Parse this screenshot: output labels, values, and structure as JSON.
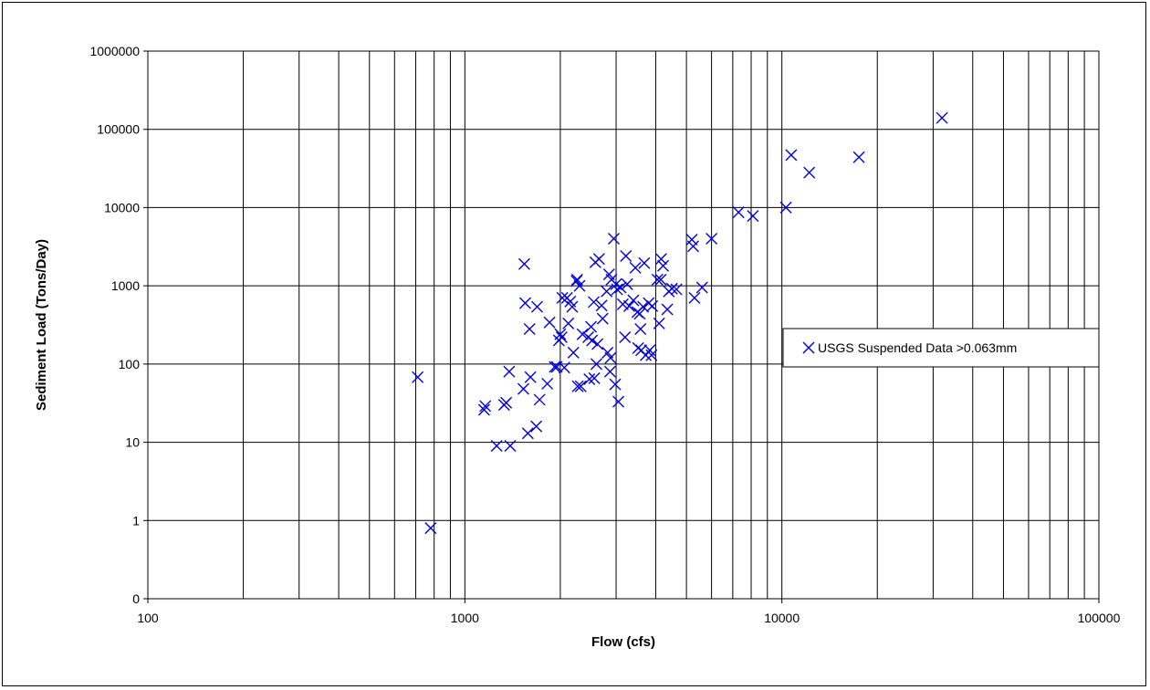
{
  "chart_data": {
    "type": "scatter",
    "xlabel": "Flow (cfs)",
    "ylabel": "Sediment Load (Tons/Day)",
    "x_scale": "log",
    "y_scale": "log",
    "xlim": [
      100,
      100000
    ],
    "ylim": [
      0,
      1000000
    ],
    "x_ticks": [
      "100",
      "1000",
      "10000",
      "100000"
    ],
    "y_ticks": [
      "0",
      "1",
      "10",
      "100",
      "1000",
      "10000",
      "100000",
      "1000000"
    ],
    "grid": true,
    "legend_position": "right",
    "colors": {
      "marker": "#0000dd",
      "grid": "#000000"
    },
    "series": [
      {
        "name": "USGS Suspended Data >0.063mm",
        "marker": "x",
        "points": [
          [
            710,
            68
          ],
          [
            780,
            0.8
          ],
          [
            1150,
            26
          ],
          [
            1160,
            29
          ],
          [
            1260,
            9
          ],
          [
            1330,
            30
          ],
          [
            1350,
            32
          ],
          [
            1380,
            80
          ],
          [
            1390,
            9
          ],
          [
            1530,
            48
          ],
          [
            1540,
            1900
          ],
          [
            1550,
            600
          ],
          [
            1580,
            13
          ],
          [
            1600,
            280
          ],
          [
            1610,
            68
          ],
          [
            1680,
            16
          ],
          [
            1690,
            540
          ],
          [
            1720,
            35
          ],
          [
            1820,
            56
          ],
          [
            1850,
            340
          ],
          [
            1920,
            92
          ],
          [
            1950,
            92
          ],
          [
            1980,
            200
          ],
          [
            2000,
            240
          ],
          [
            2020,
            220
          ],
          [
            2030,
            700
          ],
          [
            2060,
            90
          ],
          [
            2100,
            700
          ],
          [
            2120,
            330
          ],
          [
            2150,
            630
          ],
          [
            2180,
            540
          ],
          [
            2200,
            140
          ],
          [
            2250,
            1150
          ],
          [
            2260,
            1200
          ],
          [
            2270,
            52
          ],
          [
            2300,
            1000
          ],
          [
            2320,
            52
          ],
          [
            2350,
            240
          ],
          [
            2450,
            220
          ],
          [
            2470,
            64
          ],
          [
            2500,
            300
          ],
          [
            2520,
            200
          ],
          [
            2550,
            620
          ],
          [
            2560,
            66
          ],
          [
            2580,
            2000
          ],
          [
            2600,
            100
          ],
          [
            2620,
            180
          ],
          [
            2650,
            2200
          ],
          [
            2700,
            560
          ],
          [
            2720,
            380
          ],
          [
            2800,
            850
          ],
          [
            2820,
            140
          ],
          [
            2850,
            1400
          ],
          [
            2870,
            80
          ],
          [
            2880,
            120
          ],
          [
            2900,
            1200
          ],
          [
            2950,
            4000
          ],
          [
            2980,
            55
          ],
          [
            3000,
            1050
          ],
          [
            3020,
            900
          ],
          [
            3050,
            33
          ],
          [
            3100,
            950
          ],
          [
            3150,
            580
          ],
          [
            3200,
            220
          ],
          [
            3220,
            2400
          ],
          [
            3250,
            1050
          ],
          [
            3300,
            550
          ],
          [
            3400,
            650
          ],
          [
            3450,
            1700
          ],
          [
            3500,
            460
          ],
          [
            3520,
            160
          ],
          [
            3560,
            440
          ],
          [
            3580,
            280
          ],
          [
            3600,
            150
          ],
          [
            3650,
            540
          ],
          [
            3680,
            1950
          ],
          [
            3720,
            130
          ],
          [
            3800,
            600
          ],
          [
            3830,
            150
          ],
          [
            3880,
            130
          ],
          [
            3900,
            550
          ],
          [
            4050,
            1200
          ],
          [
            4100,
            330
          ],
          [
            4150,
            1200
          ],
          [
            4160,
            2200
          ],
          [
            4220,
            1800
          ],
          [
            4350,
            500
          ],
          [
            4400,
            850
          ],
          [
            4500,
            920
          ],
          [
            4650,
            900
          ],
          [
            5200,
            3900
          ],
          [
            5250,
            3200
          ],
          [
            5300,
            700
          ],
          [
            5600,
            950
          ],
          [
            6000,
            4000
          ],
          [
            7300,
            8700
          ],
          [
            8100,
            7800
          ],
          [
            10300,
            10000
          ],
          [
            10700,
            47000
          ],
          [
            12200,
            28000
          ],
          [
            17500,
            44000
          ],
          [
            32000,
            140000
          ]
        ]
      }
    ]
  }
}
